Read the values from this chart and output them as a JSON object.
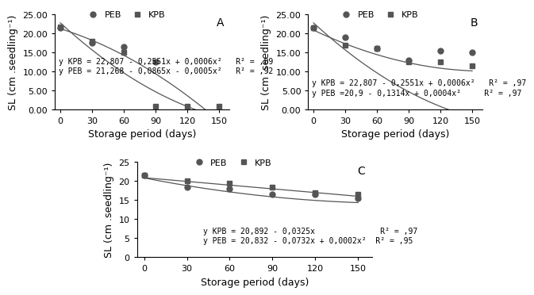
{
  "x_ticks": [
    0,
    30,
    60,
    90,
    120,
    150
  ],
  "xlabel": "Storage period (days)",
  "ylabel": "SL (cm .seedling⁻¹)",
  "A": {
    "label": "A",
    "PEB_points": [
      21.5,
      17.5,
      16.5,
      12.5,
      null,
      null
    ],
    "KPB_points": [
      21.7,
      18.0,
      15.0,
      0.8,
      0.8,
      0.8
    ],
    "eq_KPB": "y KPB = 22,807 - 0,2551x + 0,0006x²   R² = ,89",
    "eq_PEB": "y PEB = 21,268 - 0,0865x - 0,0005x²   R² = ,92",
    "KPB_coef": [
      22.807,
      -0.2551,
      0.0006
    ],
    "PEB_coef": [
      21.268,
      -0.0865,
      -0.0005
    ],
    "ylim": [
      0,
      25
    ],
    "yticks": [
      0.0,
      5.0,
      10.0,
      15.0,
      20.0,
      25.0
    ],
    "ytick_labels": [
      "0.00",
      "5.00",
      "10.00",
      "15.00",
      "20.00",
      "25.00"
    ]
  },
  "B": {
    "label": "B",
    "PEB_points": [
      21.5,
      19.0,
      16.0,
      13.0,
      15.5,
      15.0
    ],
    "KPB_points": [
      21.5,
      17.0,
      16.0,
      12.5,
      12.5,
      11.5
    ],
    "eq_KPB": "y KPB = 22,807 - 0,2551x + 0,0006x²   R² = ,97",
    "eq_PEB": "y PEB =20,9 - 0,1314x + 0,0004x²     R² = ,97",
    "KPB_coef": [
      22.807,
      -0.2551,
      0.0006
    ],
    "PEB_coef": [
      20.9,
      -0.1314,
      0.0004
    ],
    "ylim": [
      0,
      25
    ],
    "yticks": [
      0.0,
      5.0,
      10.0,
      15.0,
      20.0,
      25.0
    ],
    "ytick_labels": [
      "0.00",
      "5.00",
      "10.00",
      "15.00",
      "20.00",
      "25.00"
    ]
  },
  "C": {
    "label": "C",
    "PEB_points": [
      21.5,
      18.5,
      18.0,
      16.5,
      16.5,
      15.5
    ],
    "KPB_points": [
      21.5,
      20.0,
      19.5,
      18.5,
      17.0,
      16.5
    ],
    "eq_KPB": "y KPB = 20,892 - 0,0325x              R² = ,97",
    "eq_PEB": "y PEB = 20,832 - 0,0732x + 0,0002x²  R² = ,95",
    "KPB_coef": [
      20.892,
      -0.0325,
      0.0
    ],
    "PEB_coef": [
      20.832,
      -0.0732,
      0.0002
    ],
    "ylim": [
      0,
      25
    ],
    "yticks": [
      0,
      5,
      10,
      15,
      20,
      25
    ],
    "ytick_labels": [
      "0",
      "5",
      "10",
      "15",
      "20",
      "25"
    ]
  },
  "line_color": "#555555",
  "marker_PEB": "o",
  "marker_KPB": "s",
  "markersize": 5,
  "legend_fontsize": 8,
  "eq_fontsize": 7,
  "tick_fontsize": 8,
  "label_fontsize": 9
}
